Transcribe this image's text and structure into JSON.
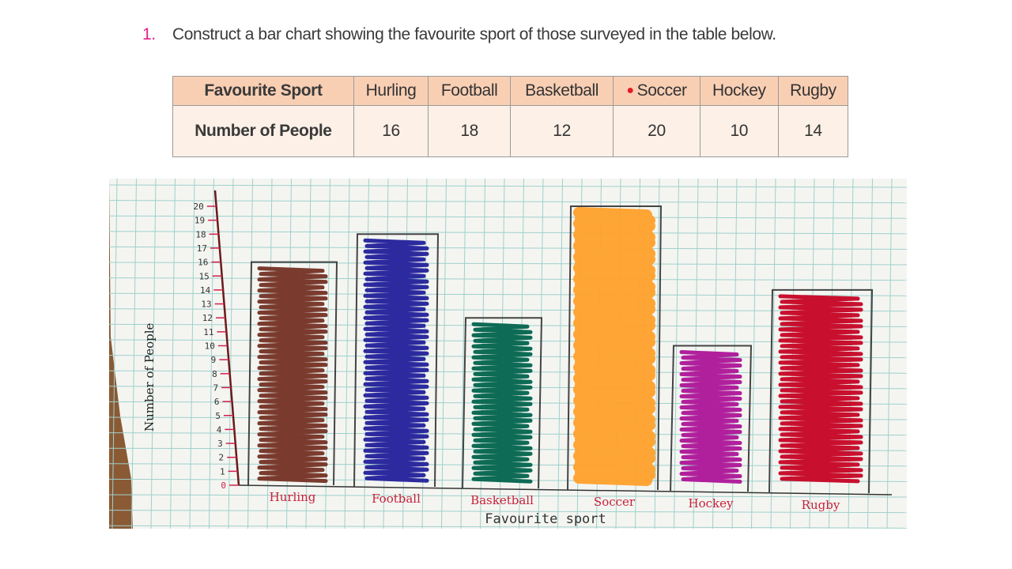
{
  "question": {
    "number": "1.",
    "text": "Construct a bar chart showing the favourite sport of those surveyed in the table below."
  },
  "table": {
    "header_label": "Favourite Sport",
    "value_label": "Number of People",
    "columns": [
      {
        "sport": "Hurling",
        "people": "16"
      },
      {
        "sport": "Football",
        "people": "18"
      },
      {
        "sport": "Basketball",
        "people": "12"
      },
      {
        "sport": "Soccer",
        "people": "20",
        "marked": true
      },
      {
        "sport": "Hockey",
        "people": "10"
      },
      {
        "sport": "Rugby",
        "people": "14"
      }
    ]
  },
  "chart_data": {
    "type": "bar",
    "title": "",
    "xlabel": "Favourite sport",
    "ylabel": "Number of People",
    "categories": [
      "Hurling",
      "Football",
      "Basketball",
      "Soccer",
      "Hockey",
      "Rugby"
    ],
    "values": [
      16,
      18,
      12,
      20,
      10,
      14
    ],
    "colors": [
      "#7a3b2e",
      "#2c2a9e",
      "#0e6b55",
      "#ffa02a",
      "#b0209c",
      "#c8102e"
    ],
    "ylim": [
      0,
      20
    ],
    "yticks": [
      0,
      1,
      2,
      3,
      4,
      5,
      6,
      7,
      8,
      9,
      10,
      11,
      12,
      13,
      14,
      15,
      16,
      17,
      18,
      19,
      20
    ],
    "grid": true,
    "legend": null,
    "style": "hand-drawn on squared paper"
  }
}
